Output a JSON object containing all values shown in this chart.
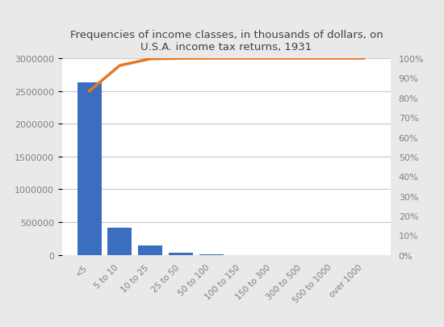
{
  "categories": [
    "<5",
    "5 to 10",
    "10 to 25",
    "25 to 50",
    "50 to 100",
    "100 to 150",
    "150 to 300",
    "300 to 500",
    "500 to 1000",
    "over 1000"
  ],
  "bar_values": [
    2630000,
    410000,
    140000,
    30000,
    5000,
    2000,
    1500,
    500,
    300,
    200
  ],
  "cumulative_pct": [
    0.833,
    0.963,
    0.997,
    0.9993,
    0.9999,
    1.0,
    1.0,
    1.0,
    1.0,
    1.0
  ],
  "bar_color": "#3C6EBF",
  "line_color": "#E87722",
  "title_line1": "Frequencies of income classes, in thousands of dollars, on",
  "title_line2": "U.S.A. income tax returns, 1931",
  "ylim_left": [
    0,
    3000000
  ],
  "ylim_right": [
    0,
    1.0
  ],
  "yticks_left": [
    0,
    500000,
    1000000,
    1500000,
    2000000,
    2500000,
    3000000
  ],
  "yticks_right": [
    0.0,
    0.1,
    0.2,
    0.3,
    0.4,
    0.5,
    0.6,
    0.7,
    0.8,
    0.9,
    1.0
  ],
  "figure_bg": "#e9e9e9",
  "plot_bg": "#ffffff",
  "grid_color": "#c8c8c8",
  "title_color": "#404040",
  "tick_color": "#808080"
}
